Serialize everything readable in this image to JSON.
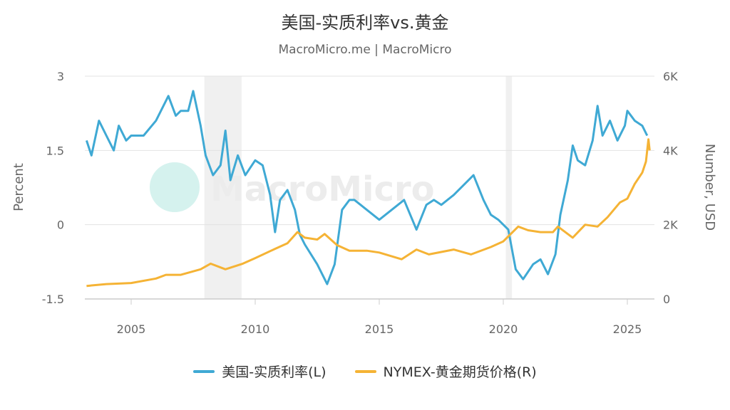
{
  "chart_data": {
    "type": "line",
    "title": "美国-实质利率vs.黄金",
    "subtitle": "MacroMicro.me | MacroMicro",
    "watermark": "MacroMicro",
    "grid": true,
    "xlim": [
      2003,
      2026.2
    ],
    "x_ticks": [
      "2005",
      "2010",
      "2015",
      "2020",
      "2025"
    ],
    "x_tick_values": [
      2005,
      2010,
      2015,
      2020,
      2025
    ],
    "y_left": {
      "label": "Percent",
      "lim": [
        -1.5,
        3
      ],
      "ticks": [
        "-1.5",
        "0",
        "1.5",
        "3"
      ],
      "tick_values": [
        -1.5,
        0,
        1.5,
        3
      ]
    },
    "y_right": {
      "label": "Number, USD",
      "lim": [
        0,
        6000
      ],
      "ticks": [
        "0",
        "2K",
        "4K",
        "6K"
      ],
      "tick_values": [
        0,
        2000,
        4000,
        6000
      ]
    },
    "recession_bands": [
      [
        2007.95,
        2009.45
      ],
      [
        2020.1,
        2020.35
      ]
    ],
    "series": [
      {
        "name": "美国-实质利率(L)",
        "axis": "left",
        "color": "#3fa9d4",
        "x": [
          2003.2,
          2003.4,
          2003.7,
          2004.0,
          2004.3,
          2004.5,
          2004.8,
          2005.0,
          2005.5,
          2006.0,
          2006.5,
          2006.8,
          2007.0,
          2007.3,
          2007.5,
          2007.8,
          2008.0,
          2008.3,
          2008.6,
          2008.8,
          2009.0,
          2009.3,
          2009.6,
          2010.0,
          2010.3,
          2010.6,
          2010.8,
          2011.0,
          2011.3,
          2011.6,
          2011.8,
          2012.0,
          2012.5,
          2012.9,
          2013.2,
          2013.5,
          2013.8,
          2014.0,
          2014.5,
          2015.0,
          2015.5,
          2016.0,
          2016.5,
          2016.9,
          2017.2,
          2017.5,
          2018.0,
          2018.8,
          2019.2,
          2019.5,
          2019.8,
          2020.2,
          2020.5,
          2020.8,
          2021.2,
          2021.5,
          2021.8,
          2022.1,
          2022.3,
          2022.6,
          2022.8,
          2023.0,
          2023.3,
          2023.6,
          2023.8,
          2024.0,
          2024.3,
          2024.6,
          2024.9,
          2025.0,
          2025.3,
          2025.6,
          2025.8
        ],
        "values": [
          1.7,
          1.4,
          2.1,
          1.8,
          1.5,
          2.0,
          1.7,
          1.8,
          1.8,
          2.1,
          2.6,
          2.2,
          2.3,
          2.3,
          2.7,
          2.0,
          1.4,
          1.0,
          1.2,
          1.9,
          0.9,
          1.4,
          1.0,
          1.3,
          1.2,
          0.6,
          -0.15,
          0.5,
          0.7,
          0.3,
          -0.2,
          -0.4,
          -0.8,
          -1.2,
          -0.8,
          0.3,
          0.5,
          0.5,
          0.3,
          0.1,
          0.3,
          0.5,
          -0.1,
          0.4,
          0.5,
          0.4,
          0.6,
          1.0,
          0.5,
          0.2,
          0.1,
          -0.1,
          -0.9,
          -1.1,
          -0.8,
          -0.7,
          -1.0,
          -0.6,
          0.2,
          0.9,
          1.6,
          1.3,
          1.2,
          1.7,
          2.4,
          1.8,
          2.1,
          1.7,
          2.0,
          2.3,
          2.1,
          2.0,
          1.8
        ]
      },
      {
        "name": "NYMEX-黄金期货价格(R)",
        "axis": "right",
        "color": "#f5b335",
        "x": [
          2003.2,
          2004.0,
          2005.0,
          2006.0,
          2006.4,
          2007.0,
          2007.8,
          2008.2,
          2008.8,
          2009.5,
          2010.0,
          2010.8,
          2011.3,
          2011.7,
          2012.0,
          2012.5,
          2012.8,
          2013.3,
          2013.8,
          2014.5,
          2015.0,
          2015.9,
          2016.5,
          2017.0,
          2018.0,
          2018.7,
          2019.5,
          2020.0,
          2020.6,
          2021.0,
          2021.5,
          2022.0,
          2022.2,
          2022.8,
          2023.3,
          2023.8,
          2024.2,
          2024.7,
          2025.0,
          2025.3,
          2025.6,
          2025.75,
          2025.85,
          2025.9
        ],
        "values": [
          350,
          400,
          430,
          550,
          650,
          650,
          800,
          950,
          800,
          950,
          1100,
          1350,
          1500,
          1800,
          1650,
          1600,
          1750,
          1450,
          1300,
          1300,
          1250,
          1070,
          1330,
          1200,
          1330,
          1200,
          1400,
          1550,
          1950,
          1850,
          1800,
          1800,
          1950,
          1650,
          2000,
          1950,
          2200,
          2600,
          2700,
          3100,
          3400,
          3700,
          4300,
          4000
        ]
      }
    ]
  },
  "legend": {
    "items": [
      "美国-实质利率(L)",
      "NYMEX-黄金期货价格(R)"
    ]
  }
}
